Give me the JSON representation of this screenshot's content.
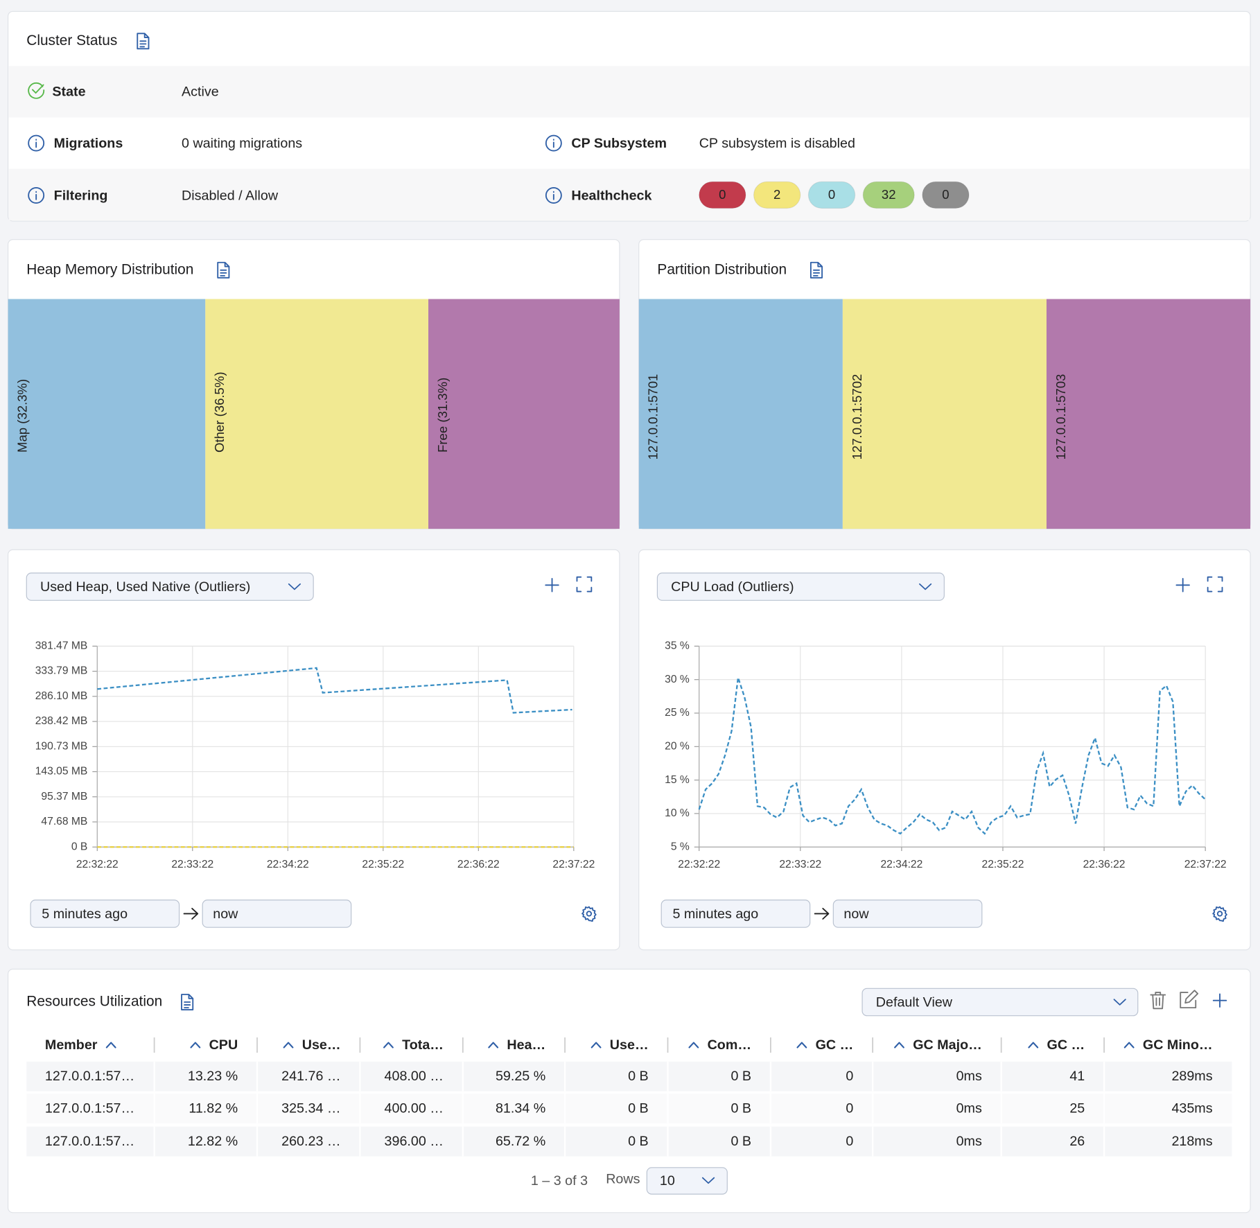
{
  "cluster_status": {
    "title": "Cluster Status",
    "state": {
      "label": "State",
      "value": "Active"
    },
    "migrations": {
      "label": "Migrations",
      "value": "0 waiting migrations"
    },
    "cp_subsystem": {
      "label": "CP Subsystem",
      "value": "CP subsystem is disabled"
    },
    "filtering": {
      "label": "Filtering",
      "value": "Disabled / Allow"
    },
    "healthcheck": {
      "label": "Healthcheck",
      "counts": [
        {
          "value": 0,
          "color": "#c23b4c"
        },
        {
          "value": 2,
          "color": "#f3e67c"
        },
        {
          "value": 0,
          "color": "#a9dfe6"
        },
        {
          "value": 32,
          "color": "#a6d07c"
        },
        {
          "value": 0,
          "color": "#8e8e8e"
        }
      ]
    }
  },
  "heap_memory": {
    "title": "Heap Memory Distribution",
    "segments": [
      {
        "label": "Map (32.3%)",
        "value": 32.3,
        "color": "#92c0de"
      },
      {
        "label": "Other (36.5%)",
        "value": 36.5,
        "color": "#f1e992"
      },
      {
        "label": "Free (31.3%)",
        "value": 31.3,
        "color": "#b279ac"
      }
    ]
  },
  "partition": {
    "title": "Partition Distribution",
    "members": [
      {
        "label": "127.0.0.1:5701",
        "color": "#92c0de"
      },
      {
        "label": "127.0.0.1:5702",
        "color": "#f1e992"
      },
      {
        "label": "127.0.0.1:5703",
        "color": "#b279ac"
      }
    ]
  },
  "chart_data": [
    {
      "type": "line",
      "selector": "Used Heap, Used Native (Outliers)",
      "xlim": [
        "22:32:22",
        "22:37:22"
      ],
      "xticks": [
        "22:32:22",
        "22:33:22",
        "22:34:22",
        "22:35:22",
        "22:36:22",
        "22:37:22"
      ],
      "ylim": [
        0,
        381.47
      ],
      "yticks": [
        {
          "value": 0,
          "label": "0 B"
        },
        {
          "value": 47.68,
          "label": "47.68 MB"
        },
        {
          "value": 95.37,
          "label": "95.37 MB"
        },
        {
          "value": 143.05,
          "label": "143.05 MB"
        },
        {
          "value": 190.73,
          "label": "190.73 MB"
        },
        {
          "value": 238.42,
          "label": "238.42 MB"
        },
        {
          "value": 286.1,
          "label": "286.10 MB"
        },
        {
          "value": 333.79,
          "label": "333.79 MB"
        },
        {
          "value": 381.47,
          "label": "381.47 MB"
        }
      ],
      "grid": true,
      "series": [
        {
          "color": "#3b8fc4",
          "x": [
            "22:32:22",
            "22:34:40",
            "22:34:44",
            "22:36:40",
            "22:36:44",
            "22:37:21"
          ],
          "values": [
            300,
            340,
            293,
            317,
            255,
            261
          ]
        },
        {
          "color": "#e8cf3a",
          "x": [
            "22:32:22",
            "22:37:22"
          ],
          "values": [
            0,
            0
          ]
        }
      ],
      "range_from": "5 minutes ago",
      "range_to": "now"
    },
    {
      "type": "line",
      "selector": "CPU Load (Outliers)",
      "xlim": [
        "22:32:22",
        "22:37:22"
      ],
      "xticks": [
        "22:32:22",
        "22:33:22",
        "22:34:22",
        "22:35:22",
        "22:36:22",
        "22:37:22"
      ],
      "ylim": [
        5,
        35
      ],
      "yticks": [
        {
          "value": 5,
          "label": "5 %"
        },
        {
          "value": 10,
          "label": "10 %"
        },
        {
          "value": 15,
          "label": "15 %"
        },
        {
          "value": 20,
          "label": "20 %"
        },
        {
          "value": 25,
          "label": "25 %"
        },
        {
          "value": 30,
          "label": "30 %"
        },
        {
          "value": 35,
          "label": "35 %"
        }
      ],
      "grid": true,
      "series": [
        {
          "color": "#3b8fc4",
          "values": [
            10.6,
            13.6,
            14.5,
            15.9,
            18.7,
            22.3,
            30.3,
            27.4,
            22.9,
            11.1,
            10.9,
            9.9,
            9.4,
            10.3,
            13.9,
            14.5,
            9.7,
            8.7,
            9.1,
            9.4,
            9.1,
            8.2,
            8.5,
            11.1,
            12.1,
            13.6,
            10.9,
            9.1,
            8.5,
            8.2,
            7.5,
            7.0,
            7.9,
            8.7,
            9.9,
            9.1,
            8.7,
            7.5,
            7.9,
            10.3,
            9.7,
            9.1,
            10.3,
            7.9,
            7.0,
            8.7,
            9.4,
            9.7,
            11.1,
            9.4,
            9.7,
            9.9,
            16.3,
            19.0,
            14.0,
            15.1,
            15.7,
            12.7,
            8.5,
            13.9,
            18.7,
            21.3,
            17.5,
            17.1,
            18.7,
            16.9,
            10.9,
            10.6,
            12.7,
            11.5,
            11.1,
            28.3,
            29.1,
            26.7,
            11.1,
            13.3,
            14.2,
            13.0,
            12.1
          ]
        }
      ],
      "range_from": "5 minutes ago",
      "range_to": "now"
    }
  ],
  "table": {
    "title": "Resources Utilization",
    "view": "Default View",
    "columns": [
      "Member",
      "CPU",
      "Use…",
      "Tota…",
      "Hea…",
      "Use…",
      "Com…",
      "GC …",
      "GC Majo…",
      "GC …",
      "GC Mino…"
    ],
    "rows": [
      [
        "127.0.0.1:57…",
        "13.23 %",
        "241.76 …",
        "408.00 …",
        "59.25 %",
        "0 B",
        "0 B",
        "0",
        "0ms",
        "41",
        "289ms"
      ],
      [
        "127.0.0.1:57…",
        "11.82 %",
        "325.34 …",
        "400.00 …",
        "81.34 %",
        "0 B",
        "0 B",
        "0",
        "0ms",
        "25",
        "435ms"
      ],
      [
        "127.0.0.1:57…",
        "12.82 %",
        "260.23 …",
        "396.00 …",
        "65.72 %",
        "0 B",
        "0 B",
        "0",
        "0ms",
        "26",
        "218ms"
      ]
    ],
    "pagination": {
      "range": "1 – 3 of 3",
      "rows_label": "Rows",
      "rows_value": "10"
    }
  }
}
